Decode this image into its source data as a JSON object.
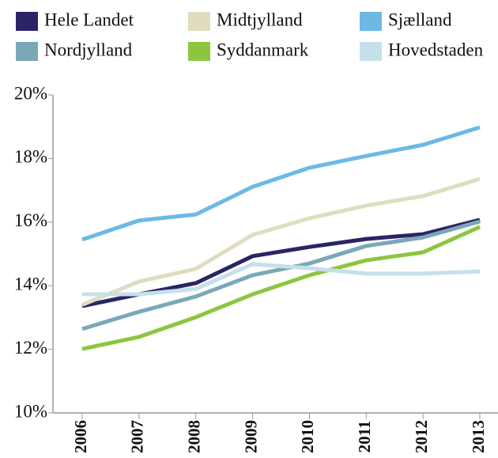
{
  "chart_data": {
    "type": "line",
    "categories": [
      "2006",
      "2007",
      "2008",
      "2009",
      "2010",
      "2011",
      "2012",
      "2013"
    ],
    "series": [
      {
        "name": "Hele Landet",
        "color": "#2a2466",
        "values": [
          13.36,
          13.73,
          14.08,
          14.93,
          15.22,
          15.47,
          15.62,
          16.07
        ]
      },
      {
        "name": "Midtjylland",
        "color": "#e0dcc0",
        "values": [
          13.4,
          14.13,
          14.53,
          15.6,
          16.12,
          16.52,
          16.82,
          17.36
        ]
      },
      {
        "name": "Sjælland",
        "color": "#6cb9e6",
        "values": [
          15.45,
          16.05,
          16.24,
          17.11,
          17.71,
          18.08,
          18.43,
          18.98
        ]
      },
      {
        "name": "Nordjylland",
        "color": "#7aa8b8",
        "values": [
          12.64,
          13.18,
          13.66,
          14.33,
          14.7,
          15.25,
          15.52,
          16.02
        ]
      },
      {
        "name": "Syddanmark",
        "color": "#8cc63f",
        "values": [
          12.01,
          12.39,
          13.01,
          13.73,
          14.33,
          14.8,
          15.05,
          15.85
        ]
      },
      {
        "name": "Hovedstaden",
        "color": "#c5e0ea",
        "values": [
          13.73,
          13.73,
          13.9,
          14.68,
          14.55,
          14.38,
          14.38,
          14.45
        ]
      }
    ],
    "ylim": [
      10,
      20
    ],
    "yticks": [
      {
        "value": 10,
        "label": "10%"
      },
      {
        "value": 12,
        "label": "12%"
      },
      {
        "value": 14,
        "label": "14%"
      },
      {
        "value": 16,
        "label": "16%"
      },
      {
        "value": 18,
        "label": "18%"
      },
      {
        "value": 20,
        "label": "20%"
      }
    ]
  }
}
